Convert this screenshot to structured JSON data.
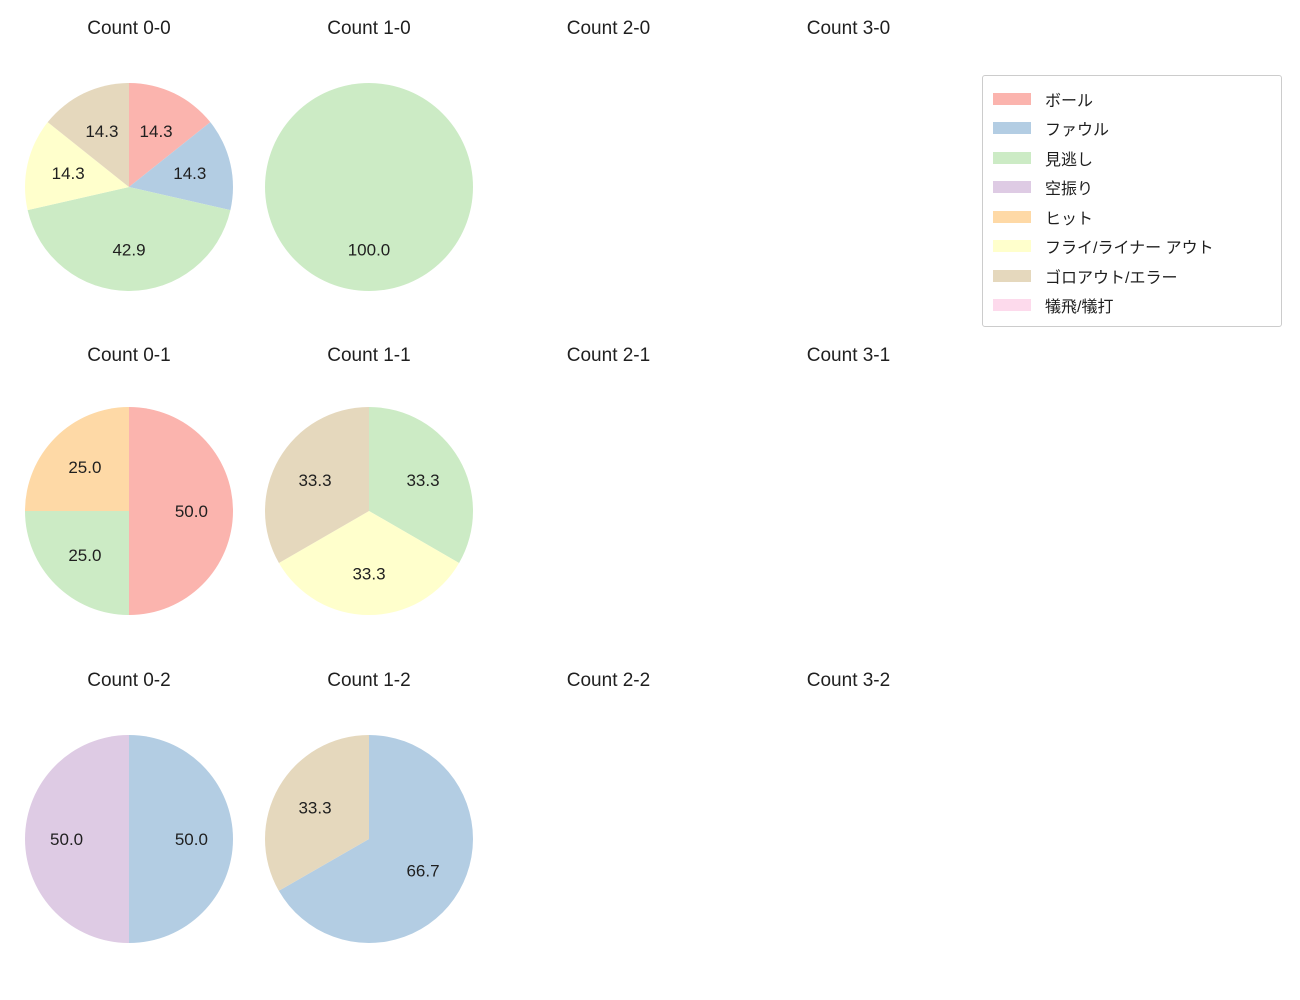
{
  "figure": {
    "background": "#ffffff",
    "text_color": "#1f1f1f"
  },
  "legend": {
    "border_color": "#cccccc",
    "background": "#ffffff",
    "entries": [
      {
        "label": "ボール",
        "color": "#fbb4ae"
      },
      {
        "label": "ファウル",
        "color": "#b3cde3"
      },
      {
        "label": "見逃し",
        "color": "#ccebc5"
      },
      {
        "label": "空振り",
        "color": "#decbe4"
      },
      {
        "label": "ヒット",
        "color": "#fed9a6"
      },
      {
        "label": "フライ/ライナー アウト",
        "color": "#ffffcc"
      },
      {
        "label": "ゴロアウト/エラー",
        "color": "#e5d8bd"
      },
      {
        "label": "犠飛/犠打",
        "color": "#fddaec"
      }
    ]
  },
  "chart_data": {
    "type": "pie",
    "grid": {
      "rows": 3,
      "cols": 4
    },
    "start_angle_deg": 90,
    "direction": "clockwise",
    "pct_label_distance": 0.6,
    "charts": [
      {
        "title": "Count 0-0",
        "row": 0,
        "col": 0,
        "slices": [
          {
            "category": "ボール",
            "pct": 14.3,
            "label": "14.3"
          },
          {
            "category": "ファウル",
            "pct": 14.3,
            "label": "14.3"
          },
          {
            "category": "見逃し",
            "pct": 42.9,
            "label": "42.9"
          },
          {
            "category": "フライ/ライナー アウト",
            "pct": 14.3,
            "label": "14.3"
          },
          {
            "category": "ゴロアウト/エラー",
            "pct": 14.3,
            "label": "14.3"
          }
        ]
      },
      {
        "title": "Count 1-0",
        "row": 0,
        "col": 1,
        "slices": [
          {
            "category": "見逃し",
            "pct": 100.0,
            "label": "100.0"
          }
        ]
      },
      {
        "title": "Count 2-0",
        "row": 0,
        "col": 2,
        "slices": []
      },
      {
        "title": "Count 3-0",
        "row": 0,
        "col": 3,
        "slices": []
      },
      {
        "title": "Count 0-1",
        "row": 1,
        "col": 0,
        "slices": [
          {
            "category": "ボール",
            "pct": 50.0,
            "label": "50.0"
          },
          {
            "category": "見逃し",
            "pct": 25.0,
            "label": "25.0"
          },
          {
            "category": "ヒット",
            "pct": 25.0,
            "label": "25.0"
          }
        ]
      },
      {
        "title": "Count 1-1",
        "row": 1,
        "col": 1,
        "slices": [
          {
            "category": "見逃し",
            "pct": 33.3,
            "label": "33.3"
          },
          {
            "category": "フライ/ライナー アウト",
            "pct": 33.3,
            "label": "33.3"
          },
          {
            "category": "ゴロアウト/エラー",
            "pct": 33.3,
            "label": "33.3"
          }
        ]
      },
      {
        "title": "Count 2-1",
        "row": 1,
        "col": 2,
        "slices": []
      },
      {
        "title": "Count 3-1",
        "row": 1,
        "col": 3,
        "slices": []
      },
      {
        "title": "Count 0-2",
        "row": 2,
        "col": 0,
        "slices": [
          {
            "category": "ファウル",
            "pct": 50.0,
            "label": "50.0"
          },
          {
            "category": "空振り",
            "pct": 50.0,
            "label": "50.0"
          }
        ]
      },
      {
        "title": "Count 1-2",
        "row": 2,
        "col": 1,
        "slices": [
          {
            "category": "ファウル",
            "pct": 66.7,
            "label": "66.7"
          },
          {
            "category": "ゴロアウト/エラー",
            "pct": 33.3,
            "label": "33.3"
          }
        ]
      },
      {
        "title": "Count 2-2",
        "row": 2,
        "col": 2,
        "slices": []
      },
      {
        "title": "Count 3-2",
        "row": 2,
        "col": 3,
        "slices": []
      }
    ]
  }
}
